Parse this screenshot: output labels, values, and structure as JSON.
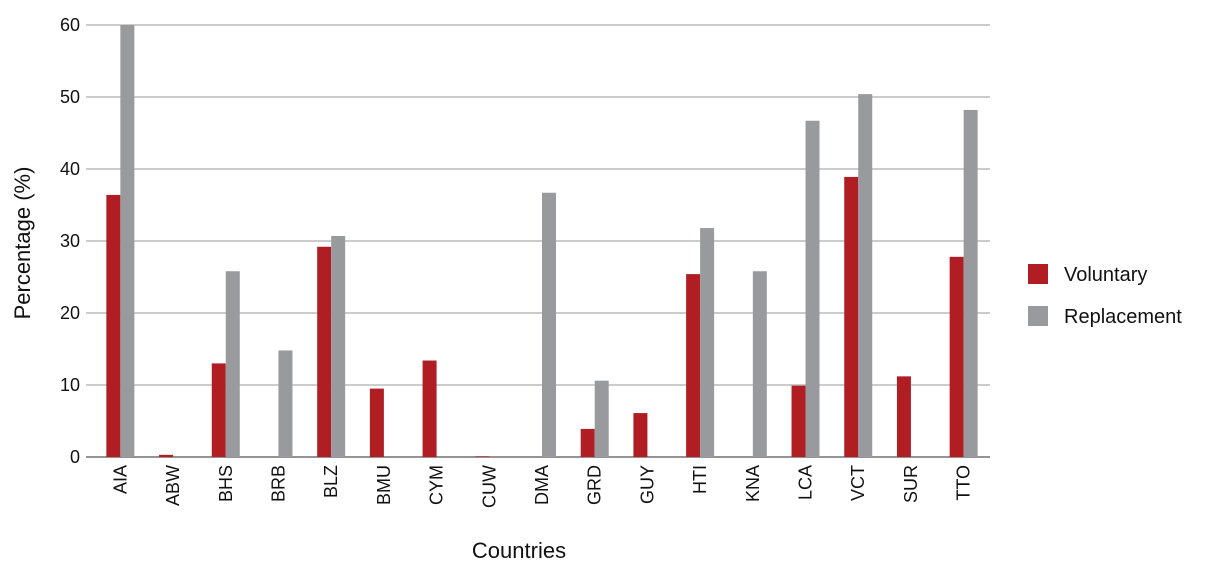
{
  "chart_data": {
    "type": "bar",
    "title": "",
    "xlabel": "Countries",
    "ylabel": "Percentage (%)",
    "ylim": [
      0,
      60
    ],
    "yticks": [
      0,
      10,
      20,
      30,
      40,
      50,
      60
    ],
    "grid": true,
    "legend_position": "right",
    "categories": [
      "AIA",
      "ABW",
      "BHS",
      "BRB",
      "BLZ",
      "BMU",
      "CYM",
      "CUW",
      "DMA",
      "GRD",
      "GUY",
      "HTI",
      "KNA",
      "LCA",
      "VCT",
      "SUR",
      "TTO"
    ],
    "series": [
      {
        "name": "Voluntary",
        "color": "#b01e23",
        "values": [
          36.4,
          0.3,
          13.0,
          0,
          29.2,
          9.5,
          13.4,
          0.1,
          0,
          3.9,
          6.1,
          25.4,
          0,
          9.9,
          38.9,
          11.2,
          27.8
        ]
      },
      {
        "name": "Replacement",
        "color": "#999a9d",
        "values": [
          60.0,
          0,
          25.8,
          14.8,
          30.7,
          0,
          0,
          0,
          36.7,
          10.6,
          0,
          31.8,
          25.8,
          46.7,
          50.4,
          0,
          48.2
        ]
      }
    ]
  }
}
